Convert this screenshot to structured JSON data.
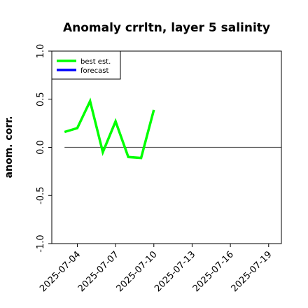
{
  "chart_data": {
    "type": "line",
    "title": "Anomaly crrltn, layer 5 salinity",
    "ylabel": "anom. corr.",
    "ylim": [
      -1.0,
      1.0
    ],
    "yticks": [
      -1.0,
      -0.5,
      0.0,
      0.5,
      1.0
    ],
    "ytick_labels": [
      "-1.0",
      "-0.5",
      "0.0",
      "0.5",
      "1.0"
    ],
    "xlim": [
      "2025-07-02",
      "2025-07-20"
    ],
    "xticks": [
      "2025-07-04",
      "2025-07-07",
      "2025-07-10",
      "2025-07-13",
      "2025-07-16",
      "2025-07-19"
    ],
    "highlighted_xtick": "2025-07-10",
    "highlight_color": "#228b22",
    "grid": false,
    "legend_position": "top-left",
    "series": [
      {
        "name": "best est.",
        "color": "#00ff00",
        "x": [
          "2025-07-03",
          "2025-07-04",
          "2025-07-05",
          "2025-07-06",
          "2025-07-07",
          "2025-07-08",
          "2025-07-09",
          "2025-07-10"
        ],
        "y": [
          0.16,
          0.2,
          0.48,
          -0.05,
          0.27,
          -0.1,
          -0.11,
          0.39
        ]
      },
      {
        "name": "forecast",
        "color": "#0000ff",
        "x": [],
        "y": []
      }
    ],
    "reference_line": {
      "y": 0.0,
      "x_from": "2025-07-03",
      "x_to": "2025-07-20",
      "color": "#555555"
    }
  }
}
